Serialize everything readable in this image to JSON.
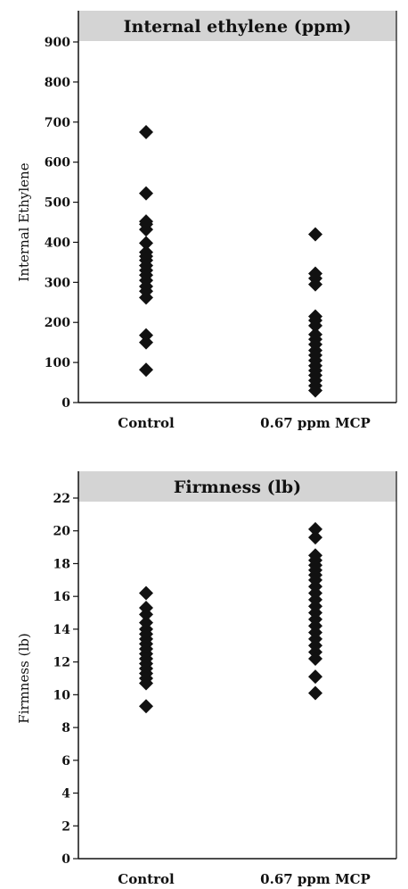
{
  "chart_data": [
    {
      "type": "scatter",
      "title": "Internal ethylene (ppm)",
      "xlabel": "",
      "ylabel": "Internal Ethylene",
      "ylim": [
        0,
        900
      ],
      "yticks": [
        "0",
        "100",
        "200",
        "300",
        "400",
        "500",
        "600",
        "700",
        "800",
        "900"
      ],
      "categories": [
        "Control",
        "0.67 ppm MCP"
      ],
      "grid": false,
      "series": [
        {
          "category": "Control",
          "values": [
            675,
            522,
            452,
            445,
            432,
            398,
            375,
            365,
            355,
            342,
            330,
            318,
            305,
            290,
            278,
            262,
            168,
            150,
            82
          ]
        },
        {
          "category": "0.67 ppm MCP",
          "values": [
            420,
            322,
            310,
            295,
            215,
            205,
            192,
            170,
            158,
            145,
            130,
            118,
            105,
            92,
            80,
            68,
            55,
            42,
            30
          ]
        }
      ]
    },
    {
      "type": "scatter",
      "title": "Firmness (lb)",
      "xlabel": "",
      "ylabel": "Firmness (lb)",
      "ylim": [
        0,
        22
      ],
      "yticks": [
        "0",
        "2",
        "4",
        "6",
        "8",
        "10",
        "12",
        "14",
        "16",
        "18",
        "20",
        "22"
      ],
      "categories": [
        "Control",
        "0.67 ppm MCP"
      ],
      "grid": false,
      "series": [
        {
          "category": "Control",
          "values": [
            16.2,
            15.3,
            14.9,
            14.4,
            14.0,
            13.7,
            13.4,
            13.1,
            12.8,
            12.5,
            12.2,
            11.9,
            11.6,
            11.3,
            11.0,
            10.7,
            9.3
          ]
        },
        {
          "category": "0.67 ppm MCP",
          "values": [
            20.1,
            19.6,
            18.5,
            18.2,
            17.9,
            17.6,
            17.3,
            17.0,
            16.6,
            16.2,
            15.8,
            15.4,
            15.0,
            14.6,
            14.2,
            13.8,
            13.4,
            13.0,
            12.6,
            12.2,
            11.1,
            10.1
          ]
        }
      ]
    }
  ]
}
